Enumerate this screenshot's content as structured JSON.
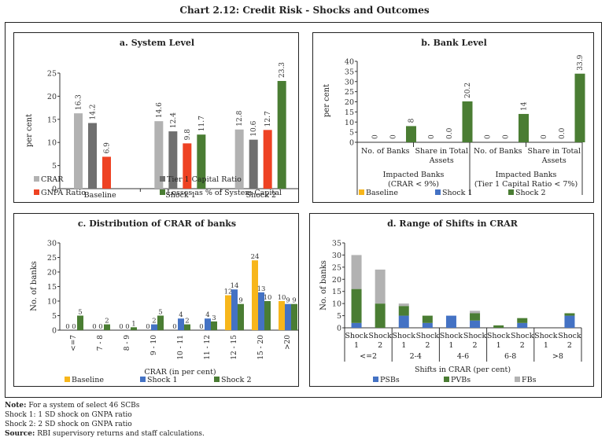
{
  "title": "Chart 2.12: Credit Risk - Shocks and Outcomes",
  "notes": {
    "note_label": "Note:",
    "note_text": "For a system of select 46 SCBs",
    "line2": "Shock 1: 1 SD shock on GNPA ratio",
    "line3": "Shock 2: 2 SD shock on GNPA ratio",
    "source_label": "Source:",
    "source_text": "RBI supervisory returns and staff calculations."
  },
  "colors": {
    "crar": "#b2b2b2",
    "tier1": "#6f6f6f",
    "gnpa": "#ee4223",
    "losses": "#4a7d33",
    "baseline": "#f7b61b",
    "shock1": "#4472c4",
    "shock2": "#4a7d33",
    "psb": "#4472c4",
    "pvb": "#4a7d33",
    "fb": "#b2b2b2"
  },
  "chart_data": [
    {
      "id": "a",
      "type": "bar",
      "title": "a. System Level",
      "ylabel": "per cent",
      "xlabel": "",
      "ylim": [
        0,
        25
      ],
      "yticks": [
        0,
        5,
        10,
        15,
        20,
        25
      ],
      "categories": [
        "Baseline",
        "Shock 1",
        "Shock 2"
      ],
      "series": [
        {
          "name": "CRAR",
          "color_key": "crar",
          "values": [
            16.3,
            14.6,
            12.8
          ],
          "labels": [
            "16.3",
            "14.6",
            "12.8"
          ]
        },
        {
          "name": "Tier 1  Capital Ratio",
          "color_key": "tier1",
          "values": [
            14.2,
            12.4,
            10.6
          ],
          "labels": [
            "14.2",
            "12.4",
            "10.6"
          ]
        },
        {
          "name": "GNPA Ratio",
          "color_key": "gnpa",
          "values": [
            6.9,
            9.8,
            12.7
          ],
          "labels": [
            "6.9",
            "9.8",
            "12.7"
          ]
        },
        {
          "name": "Losses as % of System Capital",
          "color_key": "losses",
          "values": [
            null,
            11.7,
            23.3
          ],
          "labels": [
            null,
            "11.7",
            "23.3"
          ]
        }
      ],
      "legend": "bottom"
    },
    {
      "id": "b",
      "type": "bar",
      "title": "b. Bank Level",
      "ylabel": "per cent",
      "xlabel": "",
      "ylim": [
        0,
        40
      ],
      "yticks": [
        0,
        5,
        10,
        15,
        20,
        25,
        30,
        35,
        40
      ],
      "categories": [
        "No. of Banks",
        "Share in Total Assets",
        "No. of Banks",
        "Share in Total Assets"
      ],
      "category_lines": [
        [
          "No. of Banks"
        ],
        [
          "Share in Total",
          "Assets"
        ],
        [
          "No. of Banks"
        ],
        [
          "Share in Total",
          "Assets"
        ]
      ],
      "groups": [
        {
          "lines": [
            "Impacted Banks",
            "(CRAR < 9%)"
          ]
        },
        {
          "lines": [
            "Impacted Banks",
            "(Tier 1  Capital Ratio < 7%)"
          ]
        }
      ],
      "series": [
        {
          "name": "Baseline",
          "color_key": "baseline",
          "values": [
            0,
            0,
            0,
            0
          ],
          "labels": [
            "0",
            "0",
            "0",
            "0"
          ]
        },
        {
          "name": "Shock 1",
          "color_key": "shock1",
          "values": [
            0,
            0.0,
            0,
            0.0
          ],
          "labels": [
            "0",
            "0.0",
            "0",
            "0.0"
          ]
        },
        {
          "name": "Shock 2",
          "color_key": "shock2",
          "values": [
            8,
            20.2,
            14,
            33.9
          ],
          "labels": [
            "8",
            "20.2",
            "14",
            "33.9"
          ]
        }
      ],
      "legend": "bottom"
    },
    {
      "id": "c",
      "type": "bar",
      "title": "c. Distribution of CRAR of banks",
      "ylabel": "No. of banks",
      "xlabel": "CRAR (in per cent)",
      "ylim": [
        0,
        30
      ],
      "yticks": [
        0,
        5,
        10,
        15,
        20,
        25,
        30
      ],
      "categories": [
        "<=7",
        "7 - 8",
        "8 - 9",
        "9 - 10",
        "10 - 11",
        "11 - 12",
        "12 - 15",
        "15 - 20",
        ">20"
      ],
      "series": [
        {
          "name": "Baseline",
          "color_key": "baseline",
          "values": [
            0,
            0,
            0,
            0,
            0,
            0,
            12,
            24,
            10
          ]
        },
        {
          "name": "Shock 1",
          "color_key": "shock1",
          "values": [
            0,
            0,
            0,
            2,
            4,
            4,
            14,
            13,
            9
          ]
        },
        {
          "name": "Shock 2",
          "color_key": "shock2",
          "values": [
            5,
            2,
            1,
            5,
            2,
            3,
            9,
            10,
            9
          ]
        }
      ],
      "legend": "bottom"
    },
    {
      "id": "d",
      "type": "bar",
      "stacked": true,
      "title": "d. Range of Shifts in CRAR",
      "ylabel": "No. of banks",
      "xlabel": "Shifts in CRAR (per cent)",
      "ylim": [
        0,
        35
      ],
      "yticks": [
        0,
        5,
        10,
        15,
        20,
        25,
        30,
        35
      ],
      "groups": [
        "<=2",
        "2-4",
        "4-6",
        "6-8",
        ">8"
      ],
      "subcategories": [
        "Shock 1",
        "Shock 2"
      ],
      "series": [
        {
          "name": "PSBs",
          "color_key": "psb",
          "values": [
            2,
            0,
            5,
            2,
            5,
            3,
            0,
            2,
            0,
            5
          ]
        },
        {
          "name": "PVBs",
          "color_key": "pvb",
          "values": [
            14,
            10,
            4,
            3,
            0,
            3,
            1,
            2,
            0,
            1
          ]
        },
        {
          "name": "FBs",
          "color_key": "fb",
          "values": [
            14,
            14,
            1,
            0,
            0,
            1,
            0,
            0,
            0,
            0
          ]
        }
      ],
      "legend": "bottom"
    }
  ]
}
